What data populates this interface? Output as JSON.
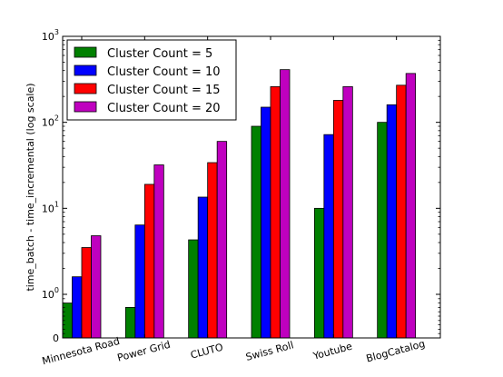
{
  "chart_data": {
    "type": "bar",
    "title": "",
    "xlabel": "",
    "ylabel": "time_batch - time_incremental (log scale)",
    "y_scale": "log",
    "ylim": [
      0,
      1000
    ],
    "y_ticks": [
      {
        "value": 0,
        "label": "0"
      },
      {
        "value": 1,
        "label": "10^0"
      },
      {
        "value": 10,
        "label": "10^1"
      },
      {
        "value": 100,
        "label": "10^2"
      },
      {
        "value": 1000,
        "label": "10^3"
      }
    ],
    "categories": [
      "Minnesota Road",
      "Power Grid",
      "CLUTO",
      "Swiss Roll",
      "Youtube",
      "BlogCatalog"
    ],
    "series": [
      {
        "name": "Cluster Count = 5",
        "color": "#008000",
        "values": [
          0.8,
          0.7,
          4.3,
          90,
          10,
          100
        ]
      },
      {
        "name": "Cluster Count = 10",
        "color": "#0000ff",
        "values": [
          1.6,
          6.4,
          13.5,
          150,
          72,
          160
        ]
      },
      {
        "name": "Cluster Count = 15",
        "color": "#ff0000",
        "values": [
          3.5,
          19,
          34,
          260,
          180,
          270
        ]
      },
      {
        "name": "Cluster Count = 20",
        "color": "#bf00bf",
        "values": [
          4.8,
          32,
          60,
          410,
          260,
          370
        ]
      }
    ],
    "grid": false,
    "legend_position": "top-left"
  }
}
